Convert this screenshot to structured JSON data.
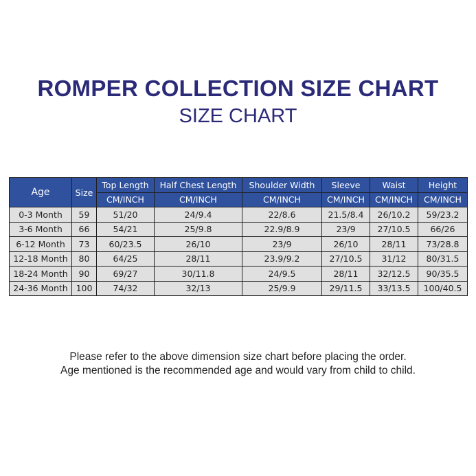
{
  "title": "ROMPER COLLECTION SIZE CHART",
  "subtitle": "SIZE CHART",
  "table": {
    "headers": [
      "Age",
      "Size",
      "Top Length",
      "Half Chest Length",
      "Shoulder Width",
      "Sleeve",
      "Waist",
      "Height"
    ],
    "unit": "CM/INCH",
    "rows": [
      [
        "0-3 Month",
        "59",
        "51/20",
        "24/9.4",
        "22/8.6",
        "21.5/8.4",
        "26/10.2",
        "59/23.2"
      ],
      [
        "3-6 Month",
        "66",
        "54/21",
        "25/9.8",
        "22.9/8.9",
        "23/9",
        "27/10.5",
        "66/26"
      ],
      [
        "6-12 Month",
        "73",
        "60/23.5",
        "26/10",
        "23/9",
        "26/10",
        "28/11",
        "73/28.8"
      ],
      [
        "12-18 Month",
        "80",
        "64/25",
        "28/11",
        "23.9/9.2",
        "27/10.5",
        "31/12",
        "80/31.5"
      ],
      [
        "18-24 Month",
        "90",
        "69/27",
        "30/11.8",
        "24/9.5",
        "28/11",
        "32/12.5",
        "90/35.5"
      ],
      [
        "24-36 Month",
        "100",
        "74/32",
        "32/13",
        "25/9.9",
        "29/11.5",
        "33/13.5",
        "100/40.5"
      ]
    ]
  },
  "notes": [
    "Please refer to the above dimension size chart before placing the order.",
    "Age mentioned is the recommended age and would vary from child to child."
  ],
  "colors": {
    "header_bg": "#2f519e",
    "title": "#2b2a78",
    "cell_bg": "#e0e0e0"
  }
}
